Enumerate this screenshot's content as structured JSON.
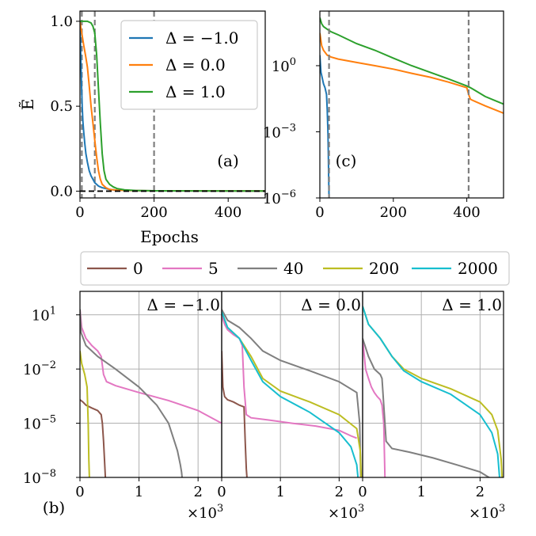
{
  "chart_data": [
    {
      "id": "a",
      "type": "line",
      "panel_label": "(a)",
      "xlabel": "Epochs",
      "ylabel": "Ẽ",
      "xlim": [
        0,
        500
      ],
      "ylim": [
        -0.04,
        1.06
      ],
      "yscale": "linear",
      "xticks": [
        0,
        200,
        400
      ],
      "xtick_labels": [
        "0",
        "200",
        "400"
      ],
      "yticks": [
        0.0,
        0.5,
        1.0
      ],
      "ytick_labels": [
        "0.0",
        "0.5",
        "1.0"
      ],
      "vlines": [
        5,
        40,
        200
      ],
      "hline": 0,
      "legend_position": "top-right",
      "series": [
        {
          "name": "Δ = −1.0",
          "color": "#1f77b4",
          "x": [
            0,
            2,
            4,
            6,
            8,
            10,
            13,
            16,
            20,
            25,
            30,
            40,
            50,
            60,
            80,
            100,
            150,
            200,
            500
          ],
          "y": [
            1.0,
            0.82,
            0.64,
            0.5,
            0.41,
            0.35,
            0.28,
            0.22,
            0.17,
            0.12,
            0.09,
            0.05,
            0.03,
            0.02,
            0.01,
            0.005,
            0.003,
            0.002,
            0.001
          ]
        },
        {
          "name": "Δ = 0.0",
          "color": "#ff7f0e",
          "x": [
            0,
            2,
            5,
            10,
            15,
            20,
            25,
            30,
            35,
            40,
            45,
            50,
            55,
            60,
            70,
            80,
            100,
            150,
            200,
            500
          ],
          "y": [
            1.0,
            0.97,
            0.93,
            0.86,
            0.8,
            0.73,
            0.62,
            0.5,
            0.4,
            0.3,
            0.2,
            0.12,
            0.07,
            0.04,
            0.02,
            0.01,
            0.005,
            0.003,
            0.002,
            0.001
          ]
        },
        {
          "name": "Δ = 1.0",
          "color": "#2ca02c",
          "x": [
            0,
            10,
            20,
            30,
            35,
            40,
            45,
            50,
            55,
            60,
            65,
            70,
            80,
            90,
            100,
            120,
            150,
            200,
            500
          ],
          "y": [
            1.0,
            1.0,
            1.0,
            0.99,
            0.97,
            0.93,
            0.8,
            0.6,
            0.4,
            0.22,
            0.12,
            0.07,
            0.04,
            0.025,
            0.015,
            0.008,
            0.004,
            0.002,
            0.001
          ]
        }
      ]
    },
    {
      "id": "c",
      "type": "line",
      "panel_label": "(c)",
      "xlim": [
        0,
        500
      ],
      "ylim": [
        1e-06,
        300
      ],
      "yscale": "log",
      "xticks": [
        0,
        200,
        400
      ],
      "xtick_labels": [
        "0",
        "200",
        "400"
      ],
      "yticks": [
        1e-06,
        0.001,
        1
      ],
      "ytick_labels": [
        "10",
        "10",
        "10"
      ],
      "ytick_exponents": [
        "−6",
        "−3",
        "0"
      ],
      "vlines": [
        25,
        405
      ],
      "series": [
        {
          "name": "Δ = −1.0",
          "color": "#1f77b4",
          "x": [
            0,
            3,
            6,
            10,
            14,
            18,
            20,
            22,
            23,
            24,
            25
          ],
          "y": [
            3.0,
            0.5,
            0.3,
            0.15,
            0.1,
            0.05,
            0.01,
            0.001,
            0.0001,
            1e-05,
            1e-06
          ]
        },
        {
          "name": "Δ = 0.0",
          "color": "#ff7f0e",
          "x": [
            0,
            5,
            10,
            20,
            30,
            50,
            100,
            150,
            200,
            250,
            300,
            350,
            400,
            405,
            410,
            420,
            450,
            500
          ],
          "y": [
            30,
            8,
            5,
            3,
            2.5,
            2,
            1.4,
            1.0,
            0.7,
            0.45,
            0.3,
            0.18,
            0.1,
            0.05,
            0.03,
            0.025,
            0.015,
            0.007
          ]
        },
        {
          "name": "Δ = 1.0",
          "color": "#2ca02c",
          "x": [
            0,
            5,
            10,
            20,
            30,
            50,
            100,
            150,
            200,
            250,
            300,
            350,
            400,
            410,
            420,
            450,
            500
          ],
          "y": [
            150,
            80,
            60,
            45,
            35,
            25,
            10,
            5,
            2.2,
            1.0,
            0.5,
            0.25,
            0.12,
            0.1,
            0.08,
            0.04,
            0.018
          ]
        }
      ]
    },
    {
      "id": "b",
      "type": "line",
      "panel_label": "(b)",
      "yscale": "log",
      "xlim": [
        0,
        2.4
      ],
      "ylim": [
        1e-08,
        200
      ],
      "x_multiplier": "×10",
      "x_multiplier_exponent": "3",
      "xticks": [
        0,
        1,
        2
      ],
      "xtick_labels": [
        "0",
        "1",
        "2"
      ],
      "yticks": [
        1e-08,
        1e-05,
        0.01,
        10
      ],
      "ytick_labels": [
        "10",
        "10",
        "10",
        "10"
      ],
      "ytick_exponents": [
        "−8",
        "−5",
        "−2",
        "1"
      ],
      "legend": [
        {
          "label": "0",
          "color": "#8c564b"
        },
        {
          "label": "5",
          "color": "#e377c2"
        },
        {
          "label": "40",
          "color": "#7f7f7f"
        },
        {
          "label": "200",
          "color": "#bcbd22"
        },
        {
          "label": "2000",
          "color": "#17becf"
        }
      ],
      "subplots": [
        {
          "title": "Δ = −1.0",
          "series": [
            {
              "name": "0",
              "color": "#8c564b",
              "x": [
                0,
                0.05,
                0.1,
                0.2,
                0.3,
                0.36,
                0.38,
                0.4,
                0.42,
                0.43,
                0.44
              ],
              "y": [
                0.0002,
                0.00015,
                0.0001,
                7e-05,
                5e-05,
                3e-05,
                1e-05,
                1e-06,
                5e-08,
                1e-08,
                3e-09
              ]
            },
            {
              "name": "5",
              "color": "#e377c2",
              "x": [
                0,
                0.03,
                0.1,
                0.2,
                0.3,
                0.36,
                0.4,
                0.45,
                0.6,
                1.0,
                1.5,
                2.0,
                2.4
              ],
              "y": [
                20,
                2,
                0.5,
                0.2,
                0.1,
                0.05,
                0.005,
                0.002,
                0.0012,
                0.0005,
                0.00018,
                5e-05,
                1e-05
              ]
            },
            {
              "name": "40",
              "color": "#7f7f7f",
              "x": [
                0,
                0.02,
                0.1,
                0.3,
                0.6,
                1.0,
                1.3,
                1.5,
                1.6,
                1.65,
                1.7,
                1.72,
                1.73,
                1.74
              ],
              "y": [
                20,
                1,
                0.2,
                0.05,
                0.01,
                0.001,
                0.0001,
                1e-05,
                1e-06,
                3e-07,
                5e-08,
                2e-08,
                1e-08,
                3e-09
              ]
            },
            {
              "name": "200",
              "color": "#bcbd22",
              "x": [
                0,
                0.03,
                0.08,
                0.12,
                0.14,
                0.15,
                0.16,
                0.165
              ],
              "y": [
                0.1,
                0.02,
                0.005,
                0.001,
                1e-05,
                1e-07,
                1e-08,
                3e-09
              ]
            }
          ]
        },
        {
          "title": "Δ = 0.0",
          "series": [
            {
              "name": "0",
              "color": "#8c564b",
              "x": [
                0,
                0.02,
                0.05,
                0.1,
                0.2,
                0.3,
                0.38,
                0.4,
                0.42,
                0.43,
                0.44
              ],
              "y": [
                0.1,
                0.001,
                0.0003,
                0.0002,
                0.00015,
                0.0001,
                8e-05,
                1e-06,
                3e-08,
                1e-08,
                3e-09
              ]
            },
            {
              "name": "5",
              "color": "#e377c2",
              "x": [
                0,
                0.05,
                0.1,
                0.2,
                0.3,
                0.35,
                0.38,
                0.42,
                0.5,
                0.8,
                1.2,
                1.6,
                2.0,
                2.2,
                2.3
              ],
              "y": [
                10,
                3,
                1.5,
                0.8,
                0.5,
                0.2,
                0.001,
                3e-05,
                2e-05,
                1.5e-05,
                1e-05,
                7e-06,
                4e-06,
                2e-06,
                1.5e-06
              ]
            },
            {
              "name": "40",
              "color": "#7f7f7f",
              "x": [
                0,
                0.1,
                0.3,
                0.5,
                0.7,
                1.0,
                1.5,
                2.0,
                2.3,
                2.35,
                2.37
              ],
              "y": [
                20,
                5,
                2,
                0.5,
                0.1,
                0.03,
                0.008,
                0.002,
                0.0005,
                1e-05,
                3e-09
              ]
            },
            {
              "name": "200",
              "color": "#bcbd22",
              "x": [
                0,
                0.1,
                0.3,
                0.5,
                0.7,
                1.0,
                1.5,
                2.0,
                2.3,
                2.36,
                2.38
              ],
              "y": [
                15,
                2,
                0.5,
                0.05,
                0.003,
                0.0006,
                0.00015,
                3e-05,
                5e-06,
                3e-07,
                3e-09
              ]
            },
            {
              "name": "2000",
              "color": "#17becf",
              "x": [
                0,
                0.1,
                0.3,
                0.5,
                0.7,
                1.0,
                1.5,
                2.0,
                2.2,
                2.3,
                2.33
              ],
              "y": [
                15,
                2,
                0.5,
                0.03,
                0.002,
                0.0003,
                4e-05,
                3e-06,
                5e-07,
                5e-08,
                3e-09
              ]
            }
          ]
        },
        {
          "title": "Δ = 1.0",
          "series": [
            {
              "name": "5",
              "color": "#e377c2",
              "x": [
                0,
                0.05,
                0.1,
                0.15,
                0.2,
                0.25,
                0.3,
                0.33,
                0.36,
                0.38,
                0.39
              ],
              "y": [
                0.5,
                0.01,
                0.003,
                0.001,
                0.0005,
                0.0003,
                0.0002,
                0.0001,
                1e-05,
                1e-08,
                3e-09
              ]
            },
            {
              "name": "40",
              "color": "#7f7f7f",
              "x": [
                0,
                0.1,
                0.2,
                0.3,
                0.33,
                0.36,
                0.4,
                0.5,
                0.8,
                1.2,
                1.6,
                2.0,
                2.2,
                2.3
              ],
              "y": [
                0.5,
                0.05,
                0.01,
                0.005,
                0.003,
                0.0001,
                1e-06,
                4e-07,
                2.5e-07,
                1.2e-07,
                5e-08,
                2e-08,
                8e-09,
                4e-09
              ]
            },
            {
              "name": "200",
              "color": "#bcbd22",
              "x": [
                0,
                0.1,
                0.3,
                0.5,
                0.7,
                1.0,
                1.5,
                2.0,
                2.2,
                2.3,
                2.36,
                2.38
              ],
              "y": [
                30,
                3,
                0.5,
                0.05,
                0.01,
                0.003,
                0.0008,
                0.00015,
                3e-05,
                4e-06,
                1e-07,
                3e-09
              ]
            },
            {
              "name": "2000",
              "color": "#17becf",
              "x": [
                0,
                0.1,
                0.3,
                0.5,
                0.7,
                1.0,
                1.5,
                2.0,
                2.2,
                2.3,
                2.34
              ],
              "y": [
                30,
                3,
                0.5,
                0.05,
                0.008,
                0.002,
                0.0004,
                3e-05,
                3e-06,
                2e-07,
                3e-09
              ]
            }
          ]
        }
      ]
    }
  ]
}
